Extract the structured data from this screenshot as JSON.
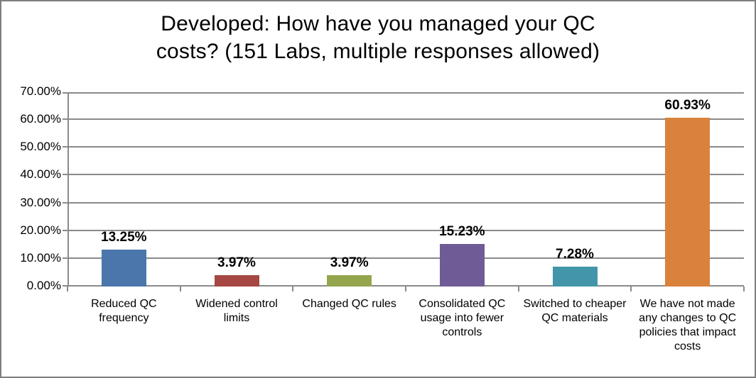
{
  "frame": {
    "border_color": "#7f7f7f",
    "background": "#ffffff"
  },
  "chart_data": {
    "type": "bar",
    "title": "Developed: How have you managed your QC costs? (151 Labs, multiple responses allowed)",
    "title_lines": [
      "Developed: How have you managed your QC",
      "costs? (151 Labs, multiple responses allowed)"
    ],
    "categories": [
      "Reduced QC frequency",
      "Widened control limits",
      "Changed QC rules",
      "Consolidated QC usage into fewer controls",
      "Switched to cheaper QC materials",
      "We have not made any changes to QC policies that impact costs"
    ],
    "values": [
      13.25,
      3.97,
      3.97,
      15.23,
      7.28,
      60.93
    ],
    "data_labels": [
      "13.25%",
      "3.97%",
      "3.97%",
      "15.23%",
      "7.28%",
      "60.93%"
    ],
    "bar_colors": [
      "#4a76ac",
      "#a64743",
      "#93a54d",
      "#6f5c96",
      "#4396aa",
      "#d9823c"
    ],
    "y_ticks": [
      "0.00%",
      "10.00%",
      "20.00%",
      "30.00%",
      "40.00%",
      "50.00%",
      "60.00%",
      "70.00%"
    ],
    "ylim": [
      0,
      70
    ],
    "grid": true,
    "legend": "none",
    "xlabel": "",
    "ylabel": "",
    "axis_color": "#8a8a8a",
    "label_color": "#000000"
  }
}
